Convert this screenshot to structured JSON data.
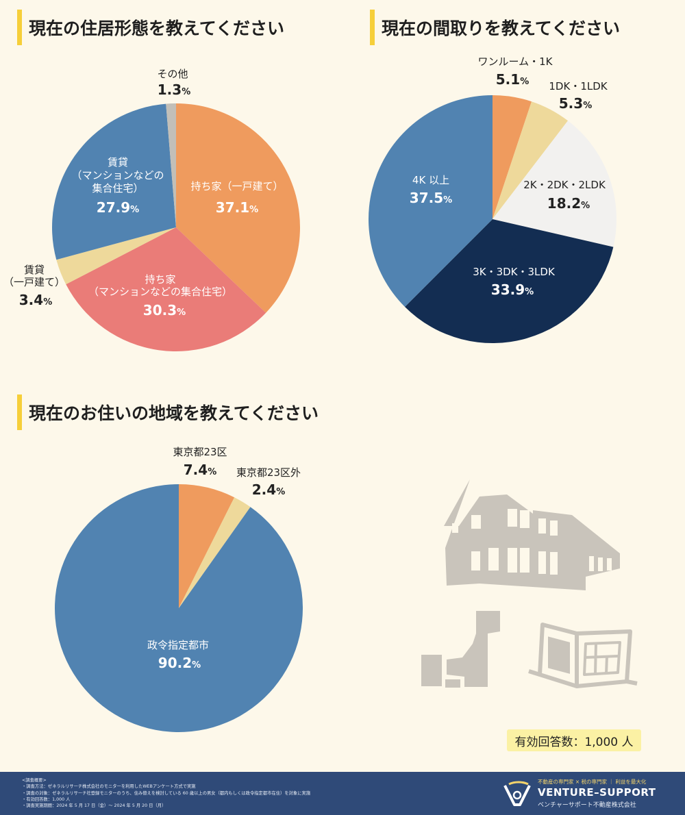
{
  "headings": {
    "residence": "現在の住居形態を教えてください",
    "layout": "現在の間取りを教えてください",
    "region": "現在のお住いの地域を教えてください"
  },
  "colors": {
    "orange": "#ef9b5e",
    "pink": "#ea7c78",
    "cream": "#eed99b",
    "steel_blue": "#5183b1",
    "light_gray": "#c2bfb8",
    "off_white": "#f2f1ef",
    "navy": "#132d52",
    "illustration_gray": "#c9c4bb",
    "heading_bar": "#f6cf3a"
  },
  "chart_data": [
    {
      "type": "pie",
      "title": "現在の住居形態を教えてください",
      "slices": [
        {
          "label": "持ち家（一戸建て）",
          "value": 37.1,
          "display": "37.1",
          "color": "#ef9b5e"
        },
        {
          "label": "持ち家（マンションなどの集合住宅）",
          "value": 30.3,
          "display": "30.3",
          "color": "#ea7c78"
        },
        {
          "label": "賃貸（一戸建て）",
          "value": 3.4,
          "display": "3.4",
          "color": "#eed99b"
        },
        {
          "label": "賃貸（マンションなどの集合住宅）",
          "value": 27.9,
          "display": "27.9",
          "color": "#5183b1"
        },
        {
          "label": "その他",
          "value": 1.3,
          "display": "1.3",
          "color": "#c2bfb8"
        }
      ]
    },
    {
      "type": "pie",
      "title": "現在の間取りを教えてください",
      "slices": [
        {
          "label": "ワンルーム・1K",
          "value": 5.1,
          "display": "5.1",
          "color": "#ef9b5e"
        },
        {
          "label": "1DK・1LDK",
          "value": 5.3,
          "display": "5.3",
          "color": "#eed99b"
        },
        {
          "label": "2K・2DK・2LDK",
          "value": 18.2,
          "display": "18.2",
          "color": "#f2f1ef"
        },
        {
          "label": "3K・3DK・3LDK",
          "value": 33.9,
          "display": "33.9",
          "color": "#132d52"
        },
        {
          "label": "4K 以上",
          "value": 37.5,
          "display": "37.5",
          "color": "#5183b1"
        }
      ]
    },
    {
      "type": "pie",
      "title": "現在のお住いの地域を教えてください",
      "slices": [
        {
          "label": "東京都23区",
          "value": 7.4,
          "display": "7.4",
          "color": "#ef9b5e"
        },
        {
          "label": "東京都23区外",
          "value": 2.4,
          "display": "2.4",
          "color": "#eed99b"
        },
        {
          "label": "政令指定都市",
          "value": 90.2,
          "display": "90.2",
          "color": "#5183b1"
        }
      ]
    }
  ],
  "slice_labels": {
    "res_detached_own_name": "持ち家（一戸建て）",
    "res_condo_own_name_1": "持ち家",
    "res_condo_own_name_2": "（マンションなどの集合住宅）",
    "res_rent_detached_name_1": "賃貸",
    "res_rent_detached_name_2": "（一戸建て）",
    "res_rent_condo_name_1": "賃貸",
    "res_rent_condo_name_2": "（マンションなどの",
    "res_rent_condo_name_3": "集合住宅）",
    "res_other_name": "その他",
    "lay_oneroom_name": "ワンルーム・1K",
    "lay_1dk_name": "1DK・1LDK",
    "lay_2k_name": "2K・2DK・2LDK",
    "lay_3k_name": "3K・3DK・3LDK",
    "lay_4k_name": "4K 以上",
    "reg_23ku_name": "東京都23区",
    "reg_outside_name": "東京都23区外",
    "reg_designated_name": "政令指定都市"
  },
  "percent_sign": "%",
  "sample_size": "有効回答数：1,000 人",
  "survey": {
    "header": "<調査概要>",
    "lines": [
      "・調査方法：ゼネラルリサーチ株式会社のモニターを利用したWEBアンケート方式で実施",
      "・調査の対象：ゼネラルリサーチ社登録モニターのうち、住み替えを検討している 60 歳以上の男女（都内もしくは政令指定都市在住）を対象に実施",
      "・有効回答数：1,000 人",
      "・調査実施期間：2024 年 5 月 17 日（金）～ 2024 年 5 月 20 日（月）"
    ]
  },
  "brand": {
    "tagline": "不動産の専門家 × 税の専門家 ｜ 利益を最大化",
    "name": "VENTURE–SUPPORT",
    "company": "ベンチャーサポート不動産株式会社"
  },
  "icons": {
    "house": "house-illustration-icon",
    "japan_map": "japan-map-icon",
    "floor_plan": "floor-plan-book-icon",
    "logo": "venture-support-logo-icon"
  }
}
